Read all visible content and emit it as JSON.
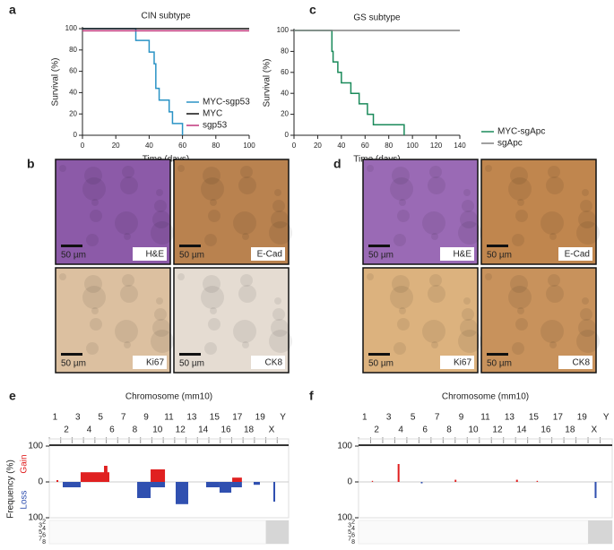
{
  "chart_data": [
    {
      "type": "step",
      "panel": "a",
      "title": "CIN subtype",
      "xlabel": "Time (days)",
      "ylabel": "Survival (%)",
      "xlim": [
        0,
        100
      ],
      "ylim": [
        0,
        100
      ],
      "xticks": [
        0,
        20,
        40,
        60,
        80,
        100
      ],
      "yticks": [
        0,
        20,
        40,
        60,
        80,
        100
      ],
      "legend": "lower right",
      "series": [
        {
          "name": "MYC-sgp53",
          "color": "#2a93c5",
          "x": [
            0,
            32,
            40,
            43,
            44,
            46,
            52,
            54,
            60
          ],
          "values": [
            100,
            89,
            78,
            67,
            44,
            33,
            22,
            11,
            0
          ]
        },
        {
          "name": "MYC",
          "color": "#111111",
          "x": [
            0,
            100
          ],
          "values": [
            100,
            100
          ]
        },
        {
          "name": "sgp53",
          "color": "#c0357a",
          "x": [
            0,
            100
          ],
          "values": [
            98,
            98
          ]
        }
      ]
    },
    {
      "type": "step",
      "panel": "c",
      "title": "GS subtype",
      "xlabel": "Time (days)",
      "ylabel": "Survival (%)",
      "xlim": [
        0,
        140
      ],
      "ylim": [
        0,
        100
      ],
      "xticks": [
        0,
        20,
        40,
        60,
        80,
        100,
        120,
        140
      ],
      "yticks": [
        0,
        20,
        40,
        60,
        80,
        100
      ],
      "legend": "lower right",
      "series": [
        {
          "name": "MYC-sgApc",
          "color": "#1a8a5a",
          "x": [
            0,
            32,
            33,
            37,
            40,
            48,
            55,
            62,
            67,
            93
          ],
          "values": [
            100,
            80,
            70,
            60,
            50,
            40,
            30,
            20,
            10,
            0
          ]
        },
        {
          "name": "sgApc",
          "color": "#808080",
          "x": [
            0,
            140
          ],
          "values": [
            100,
            100
          ]
        }
      ]
    },
    {
      "type": "segments",
      "panel": "e",
      "title": "Chromosome (mm10)",
      "ylabel": "Frequency (%)",
      "chromosomes": [
        "1",
        "2",
        "3",
        "4",
        "5",
        "6",
        "7",
        "8",
        "9",
        "10",
        "11",
        "12",
        "13",
        "14",
        "15",
        "16",
        "17",
        "18",
        "19",
        "X",
        "Y"
      ],
      "xlim": [
        0,
        21
      ],
      "ylim": [
        -100,
        100
      ],
      "yticks": [
        {
          "value": -100,
          "label": "100"
        },
        0,
        100
      ],
      "series": [
        {
          "name": "Gain",
          "color": "#e02020",
          "segments": [
            {
              "start": 0.63,
              "end": 0.79,
              "value": 5
            },
            {
              "start": 2.75,
              "end": 5.27,
              "value": 27
            },
            {
              "start": 4.8,
              "end": 5.1,
              "value": 45
            },
            {
              "start": 8.89,
              "end": 10.15,
              "value": 35
            },
            {
              "start": 16.05,
              "end": 16.9,
              "value": 12
            }
          ]
        },
        {
          "name": "Loss",
          "color": "#3050b0",
          "segments": [
            {
              "start": 1.18,
              "end": 2.75,
              "value": -15
            },
            {
              "start": 7.71,
              "end": 8.89,
              "value": -45
            },
            {
              "start": 8.89,
              "end": 10.15,
              "value": -15
            },
            {
              "start": 11.09,
              "end": 12.19,
              "value": -62
            },
            {
              "start": 13.76,
              "end": 14.94,
              "value": -15
            },
            {
              "start": 14.94,
              "end": 15.97,
              "value": -30
            },
            {
              "start": 15.97,
              "end": 16.9,
              "value": -15
            },
            {
              "start": 17.93,
              "end": 18.48,
              "value": -8
            },
            {
              "start": 19.66,
              "end": 19.82,
              "value": -55
            }
          ]
        }
      ],
      "heatmap_rows": [
        "2",
        "3",
        "4",
        "5",
        "6",
        "7",
        "8"
      ]
    },
    {
      "type": "segments",
      "panel": "f",
      "title": "Chromosome (mm10)",
      "chromosomes": [
        "1",
        "2",
        "3",
        "4",
        "5",
        "6",
        "7",
        "8",
        "9",
        "10",
        "11",
        "12",
        "13",
        "14",
        "15",
        "16",
        "17",
        "18",
        "19",
        "X",
        "Y"
      ],
      "xlim": [
        0,
        21
      ],
      "ylim": [
        -100,
        100
      ],
      "yticks": [
        {
          "value": -100,
          "label": "100"
        },
        0,
        100
      ],
      "series": [
        {
          "color": "#e02020",
          "segments": [
            {
              "start": 1.1,
              "end": 1.2,
              "value": 3
            },
            {
              "start": 3.24,
              "end": 3.39,
              "value": 50
            },
            {
              "start": 7.96,
              "end": 8.1,
              "value": 6
            },
            {
              "start": 13.04,
              "end": 13.19,
              "value": 6
            },
            {
              "start": 14.74,
              "end": 14.85,
              "value": 3
            }
          ]
        },
        {
          "color": "#3050b0",
          "segments": [
            {
              "start": 5.16,
              "end": 5.3,
              "value": -4
            },
            {
              "start": 19.55,
              "end": 19.7,
              "value": -45
            }
          ]
        }
      ],
      "heatmap_rows": [
        "2",
        "3",
        "4",
        "5",
        "6",
        "7",
        "8"
      ]
    }
  ],
  "image_panels": [
    {
      "panel": "b",
      "tiles": [
        {
          "label": "H&E",
          "scale": "50 µm",
          "color": "#8c5aa8"
        },
        {
          "label": "E-Cad",
          "scale": "50 µm",
          "color": "#b9824f"
        },
        {
          "label": "Ki67",
          "scale": "50 µm",
          "color": "#dcc0a0"
        },
        {
          "label": "CK8",
          "scale": "50 µm",
          "color": "#e5dcd2"
        }
      ]
    },
    {
      "panel": "d",
      "tiles": [
        {
          "label": "H&E",
          "scale": "50 µm",
          "color": "#9a6ab5"
        },
        {
          "label": "E-Cad",
          "scale": "50 µm",
          "color": "#c0864e"
        },
        {
          "label": "Ki67",
          "scale": "50 µm",
          "color": "#dcb27e"
        },
        {
          "label": "CK8",
          "scale": "50 µm",
          "color": "#c8925c"
        }
      ]
    }
  ]
}
